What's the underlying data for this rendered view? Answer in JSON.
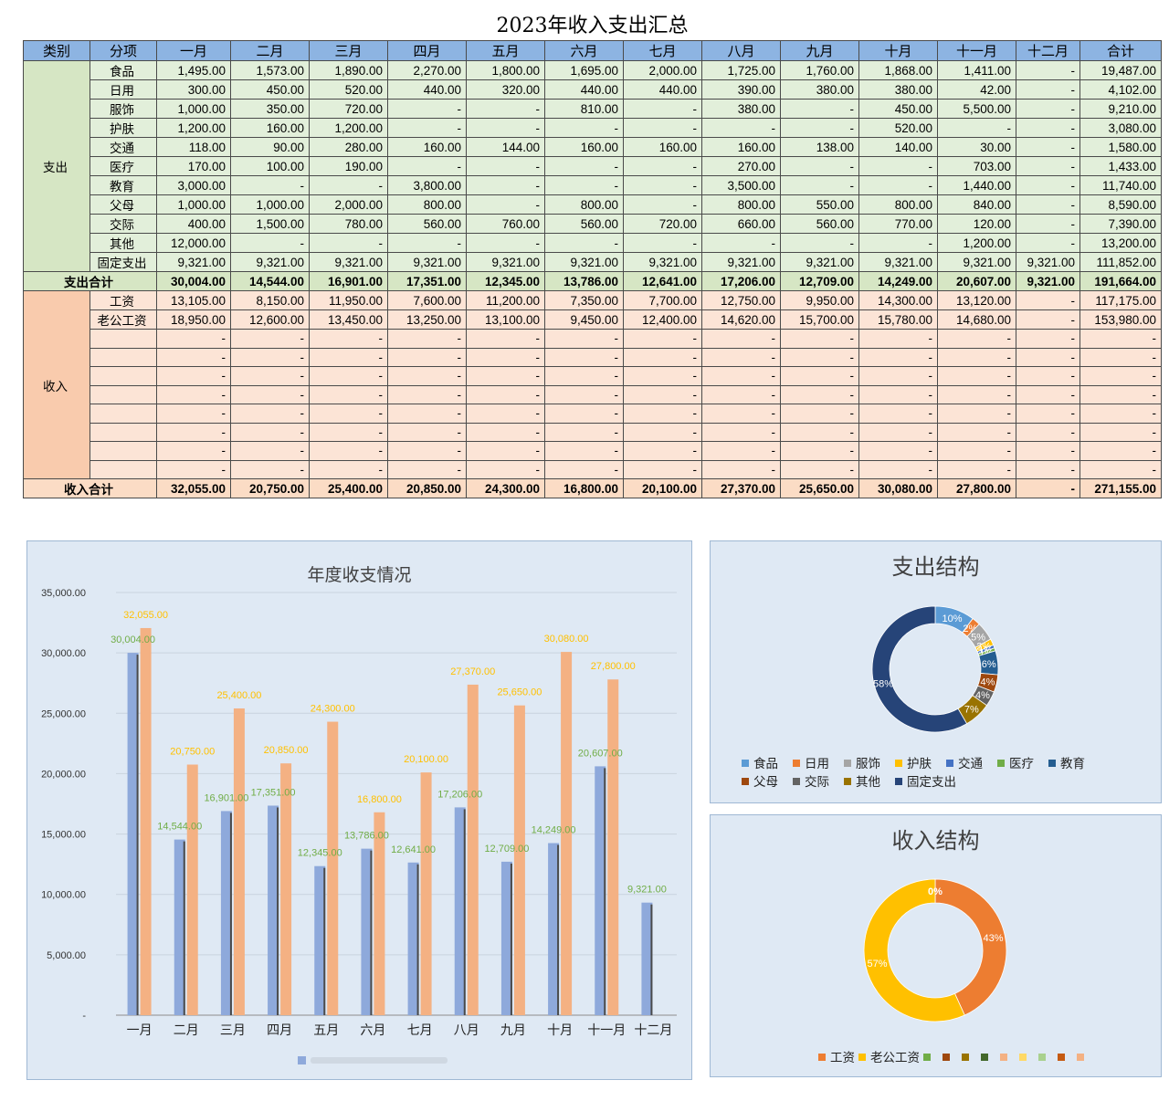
{
  "title": "2023年收入支出汇总",
  "table": {
    "headers": [
      "类别",
      "分项",
      "一月",
      "二月",
      "三月",
      "四月",
      "五月",
      "六月",
      "七月",
      "八月",
      "九月",
      "十月",
      "十一月",
      "十二月",
      "合计"
    ],
    "expense_label": "支出",
    "expense_rows": [
      {
        "item": "食品",
        "values": [
          "1,495.00",
          "1,573.00",
          "1,890.00",
          "2,270.00",
          "1,800.00",
          "1,695.00",
          "2,000.00",
          "1,725.00",
          "1,760.00",
          "1,868.00",
          "1,411.00",
          "-",
          "19,487.00"
        ]
      },
      {
        "item": "日用",
        "values": [
          "300.00",
          "450.00",
          "520.00",
          "440.00",
          "320.00",
          "440.00",
          "440.00",
          "390.00",
          "380.00",
          "380.00",
          "42.00",
          "-",
          "4,102.00"
        ]
      },
      {
        "item": "服饰",
        "values": [
          "1,000.00",
          "350.00",
          "720.00",
          "-",
          "-",
          "810.00",
          "-",
          "380.00",
          "-",
          "450.00",
          "5,500.00",
          "-",
          "9,210.00"
        ]
      },
      {
        "item": "护肤",
        "values": [
          "1,200.00",
          "160.00",
          "1,200.00",
          "-",
          "-",
          "-",
          "-",
          "-",
          "-",
          "520.00",
          "-",
          "-",
          "3,080.00"
        ]
      },
      {
        "item": "交通",
        "values": [
          "118.00",
          "90.00",
          "280.00",
          "160.00",
          "144.00",
          "160.00",
          "160.00",
          "160.00",
          "138.00",
          "140.00",
          "30.00",
          "-",
          "1,580.00"
        ]
      },
      {
        "item": "医疗",
        "values": [
          "170.00",
          "100.00",
          "190.00",
          "-",
          "-",
          "-",
          "-",
          "270.00",
          "-",
          "-",
          "703.00",
          "-",
          "1,433.00"
        ]
      },
      {
        "item": "教育",
        "values": [
          "3,000.00",
          "-",
          "-",
          "3,800.00",
          "-",
          "-",
          "-",
          "3,500.00",
          "-",
          "-",
          "1,440.00",
          "-",
          "11,740.00"
        ]
      },
      {
        "item": "父母",
        "values": [
          "1,000.00",
          "1,000.00",
          "2,000.00",
          "800.00",
          "-",
          "800.00",
          "-",
          "800.00",
          "550.00",
          "800.00",
          "840.00",
          "-",
          "8,590.00"
        ]
      },
      {
        "item": "交际",
        "values": [
          "400.00",
          "1,500.00",
          "780.00",
          "560.00",
          "760.00",
          "560.00",
          "720.00",
          "660.00",
          "560.00",
          "770.00",
          "120.00",
          "-",
          "7,390.00"
        ]
      },
      {
        "item": "其他",
        "values": [
          "12,000.00",
          "-",
          "-",
          "-",
          "-",
          "-",
          "-",
          "-",
          "-",
          "-",
          "1,200.00",
          "-",
          "13,200.00"
        ]
      },
      {
        "item": "固定支出",
        "values": [
          "9,321.00",
          "9,321.00",
          "9,321.00",
          "9,321.00",
          "9,321.00",
          "9,321.00",
          "9,321.00",
          "9,321.00",
          "9,321.00",
          "9,321.00",
          "9,321.00",
          "9,321.00",
          "111,852.00"
        ]
      }
    ],
    "expense_total": {
      "label": "支出合计",
      "values": [
        "30,004.00",
        "14,544.00",
        "16,901.00",
        "17,351.00",
        "12,345.00",
        "13,786.00",
        "12,641.00",
        "17,206.00",
        "12,709.00",
        "14,249.00",
        "20,607.00",
        "9,321.00",
        "191,664.00"
      ]
    },
    "income_label": "收入",
    "income_rows": [
      {
        "item": "工资",
        "values": [
          "13,105.00",
          "8,150.00",
          "11,950.00",
          "7,600.00",
          "11,200.00",
          "7,350.00",
          "7,700.00",
          "12,750.00",
          "9,950.00",
          "14,300.00",
          "13,120.00",
          "-",
          "117,175.00"
        ]
      },
      {
        "item": "老公工资",
        "values": [
          "18,950.00",
          "12,600.00",
          "13,450.00",
          "13,250.00",
          "13,100.00",
          "9,450.00",
          "12,400.00",
          "14,620.00",
          "15,700.00",
          "15,780.00",
          "14,680.00",
          "-",
          "153,980.00"
        ]
      },
      {
        "item": "",
        "values": [
          "-",
          "-",
          "-",
          "-",
          "-",
          "-",
          "-",
          "-",
          "-",
          "-",
          "-",
          "-",
          "-"
        ]
      },
      {
        "item": "",
        "values": [
          "-",
          "-",
          "-",
          "-",
          "-",
          "-",
          "-",
          "-",
          "-",
          "-",
          "-",
          "-",
          "-"
        ]
      },
      {
        "item": "",
        "values": [
          "-",
          "-",
          "-",
          "-",
          "-",
          "-",
          "-",
          "-",
          "-",
          "-",
          "-",
          "-",
          "-"
        ]
      },
      {
        "item": "",
        "values": [
          "-",
          "-",
          "-",
          "-",
          "-",
          "-",
          "-",
          "-",
          "-",
          "-",
          "-",
          "-",
          "-"
        ]
      },
      {
        "item": "",
        "values": [
          "-",
          "-",
          "-",
          "-",
          "-",
          "-",
          "-",
          "-",
          "-",
          "-",
          "-",
          "-",
          "-"
        ]
      },
      {
        "item": "",
        "values": [
          "-",
          "-",
          "-",
          "-",
          "-",
          "-",
          "-",
          "-",
          "-",
          "-",
          "-",
          "-",
          "-"
        ]
      },
      {
        "item": "",
        "values": [
          "-",
          "-",
          "-",
          "-",
          "-",
          "-",
          "-",
          "-",
          "-",
          "-",
          "-",
          "-",
          "-"
        ]
      },
      {
        "item": "",
        "values": [
          "-",
          "-",
          "-",
          "-",
          "-",
          "-",
          "-",
          "-",
          "-",
          "-",
          "-",
          "-",
          "-"
        ]
      }
    ],
    "income_total": {
      "label": "收入合计",
      "values": [
        "32,055.00",
        "20,750.00",
        "25,400.00",
        "20,850.00",
        "24,300.00",
        "16,800.00",
        "20,100.00",
        "27,370.00",
        "25,650.00",
        "30,080.00",
        "27,800.00",
        "-",
        "271,155.00"
      ]
    }
  },
  "colors": {
    "expense_bar": "#8ea9db",
    "income_bar": "#f4b183",
    "expense_label": "#70ad47",
    "income_label": "#ffc000"
  },
  "chart_data": [
    {
      "type": "bar",
      "title": "年度收支情况",
      "categories": [
        "一月",
        "二月",
        "三月",
        "四月",
        "五月",
        "六月",
        "七月",
        "八月",
        "九月",
        "十月",
        "十一月",
        "十二月"
      ],
      "series": [
        {
          "values": [
            30004,
            14544,
            16901,
            17351,
            12345,
            13786,
            12641,
            17206,
            12709,
            14249,
            20607,
            9321
          ]
        },
        {
          "values": [
            32055,
            20750,
            25400,
            20850,
            24300,
            16800,
            20100,
            27370,
            25650,
            30080,
            27800,
            0
          ]
        }
      ],
      "value_labels": [
        [
          "30,004.00",
          "14,544.00",
          "16,901.00",
          "17,351.00",
          "12,345.00",
          "13,786.00",
          "12,641.00",
          "17,206.00",
          "12,709.00",
          "14,249.00",
          "20,607.00",
          "9,321.00"
        ],
        [
          "32,055.00",
          "20,750.00",
          "25,400.00",
          "20,850.00",
          "24,300.00",
          "16,800.00",
          "20,100.00",
          "27,370.00",
          "25,650.00",
          "30,080.00",
          "27,800.00",
          "-"
        ]
      ],
      "ylim": [
        0,
        35000
      ],
      "y_ticks": [
        0,
        5000,
        10000,
        15000,
        20000,
        25000,
        30000,
        35000
      ],
      "y_tick_labels": [
        "-",
        "5,000.00",
        "10,000.00",
        "15,000.00",
        "20,000.00",
        "25,000.00",
        "30,000.00",
        "35,000.00"
      ],
      "grid": true
    },
    {
      "type": "pie",
      "title": "支出结构",
      "labels": [
        "食品",
        "日用",
        "服饰",
        "护肤",
        "交通",
        "医疗",
        "教育",
        "父母",
        "交际",
        "其他",
        "固定支出"
      ],
      "values": [
        19487,
        4102,
        9210,
        3080,
        1580,
        1433,
        11740,
        8590,
        7390,
        13200,
        111852
      ],
      "percent_labels": [
        "10%",
        "2%",
        "5%",
        "2%",
        "1%",
        "1%",
        "6%",
        "4%",
        "4%",
        "7%",
        "58%"
      ],
      "colors": [
        "#5b9bd5",
        "#ed7d31",
        "#a5a5a5",
        "#ffc000",
        "#4472c4",
        "#70ad47",
        "#255e91",
        "#9e480e",
        "#636363",
        "#997300",
        "#264478"
      ],
      "legend": "bottom"
    },
    {
      "type": "pie",
      "title": "收入结构",
      "labels": [
        "工资",
        "老公工资",
        "",
        "",
        "",
        "",
        "",
        "",
        "",
        "",
        ""
      ],
      "values": [
        117175,
        153980,
        0,
        0,
        0,
        0,
        0,
        0,
        0,
        0,
        0
      ],
      "percent_labels": [
        "43%",
        "57%",
        "0%"
      ],
      "colors": [
        "#ed7d31",
        "#ffc000",
        "#70ad47",
        "#9e480e",
        "#997300",
        "#43682b",
        "#f4b183",
        "#ffd966",
        "#a9d18e",
        "#c55a11",
        "#f4b183"
      ],
      "legend": "bottom"
    }
  ]
}
